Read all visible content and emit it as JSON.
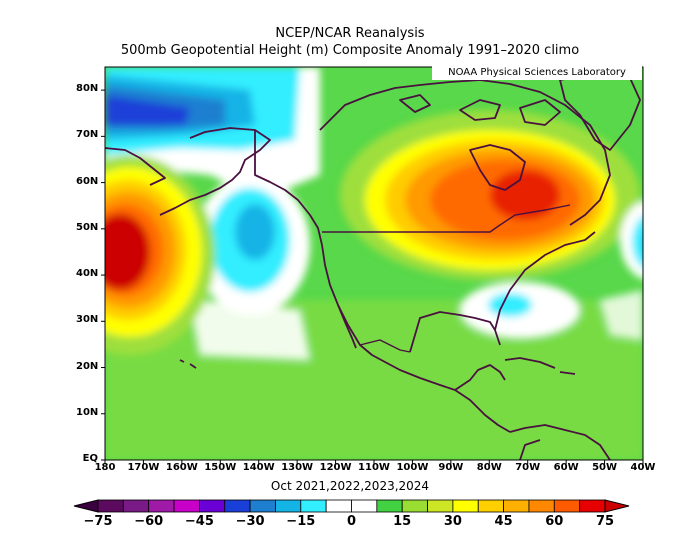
{
  "header": {
    "line1": "NCEP/NCAR Reanalysis",
    "line2": "500mb Geopotential Height (m) Composite Anomaly 1991–2020 climo"
  },
  "credit": "NOAA Physical Sciences Laboratory",
  "axes": {
    "lat_labels": [
      "80N",
      "70N",
      "60N",
      "50N",
      "40N",
      "30N",
      "20N",
      "10N",
      "EQ"
    ],
    "lon_labels": [
      "180",
      "170W",
      "160W",
      "150W",
      "140W",
      "130W",
      "120W",
      "110W",
      "100W",
      "90W",
      "80W",
      "70W",
      "60W",
      "50W",
      "40W"
    ]
  },
  "period": "Oct 2021,2022,2023,2024",
  "colorbar": {
    "labels": [
      "−75",
      "−60",
      "−45",
      "−30",
      "−15",
      "0",
      "15",
      "30",
      "45",
      "60",
      "75"
    ],
    "colors": [
      "#5b0a5e",
      "#7a1a86",
      "#a01aa8",
      "#c800c8",
      "#6a00d6",
      "#1a3fd8",
      "#1e7fd0",
      "#14b4e6",
      "#33eeff",
      "#ffffff",
      "#ffffff",
      "#42d142",
      "#99dd33",
      "#cce626",
      "#ffff00",
      "#ffd000",
      "#ffb000",
      "#ff8800",
      "#ff5a00",
      "#e60000"
    ]
  },
  "map_colors": {
    "green": "#58d84a",
    "lightgreen": "#9fdf3c",
    "yellowgreen": "#cfe22e",
    "yellow": "#ffff00",
    "gold": "#ffcc00",
    "orange": "#ff9a00",
    "darkorange": "#ff6a00",
    "red": "#e82000",
    "darkred": "#cc0000",
    "white": "#ffffff",
    "cyan": "#33eeff",
    "skyblue": "#14b4e6",
    "blue": "#1e7fd0",
    "darkblue": "#1a3fd8",
    "coast": "#4a1040"
  }
}
